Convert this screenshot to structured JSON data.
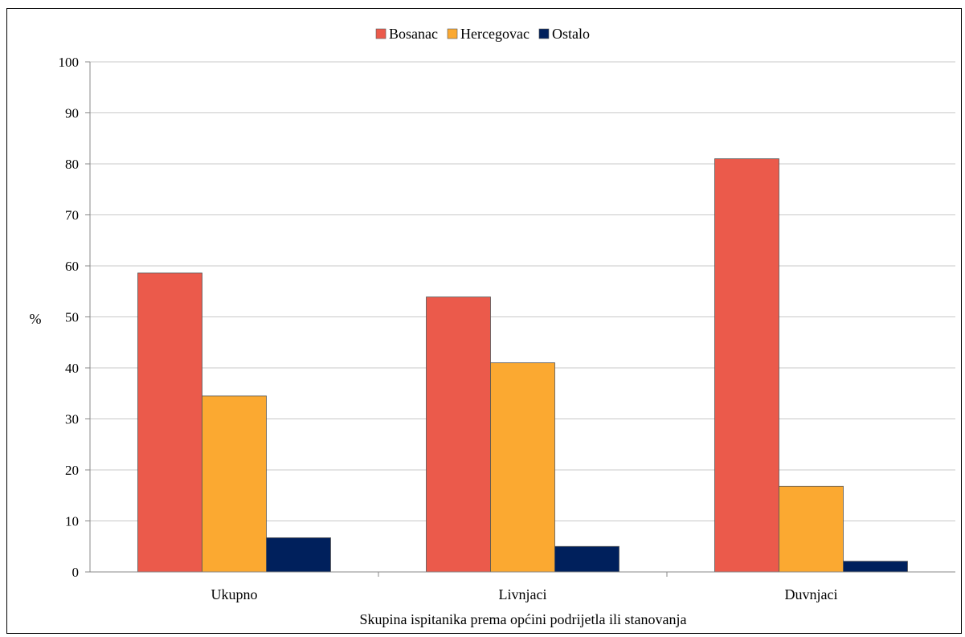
{
  "chart_data": {
    "type": "bar",
    "categories": [
      "Ukupno",
      "Livnjaci",
      "Duvnjaci"
    ],
    "series": [
      {
        "name": "Bosanac",
        "color": "#EB5A4B",
        "values": [
          58.6,
          53.9,
          81.0
        ]
      },
      {
        "name": "Hercegovac",
        "color": "#FBA931",
        "values": [
          34.5,
          41.0,
          16.8
        ]
      },
      {
        "name": "Ostalo",
        "color": "#00205C",
        "values": [
          6.7,
          5.0,
          2.1
        ]
      }
    ],
    "title": "",
    "xlabel": "Skupina ispitanika prema općini podrijetla ili stanovanja",
    "ylabel": "%",
    "ylim": [
      0,
      100
    ],
    "yticks": [
      0,
      10,
      20,
      30,
      40,
      50,
      60,
      70,
      80,
      90,
      100
    ],
    "grid": true,
    "legend_position": "top-center",
    "colors": {
      "grid": "#C8C8C8",
      "bar_stroke": "#555555"
    }
  }
}
